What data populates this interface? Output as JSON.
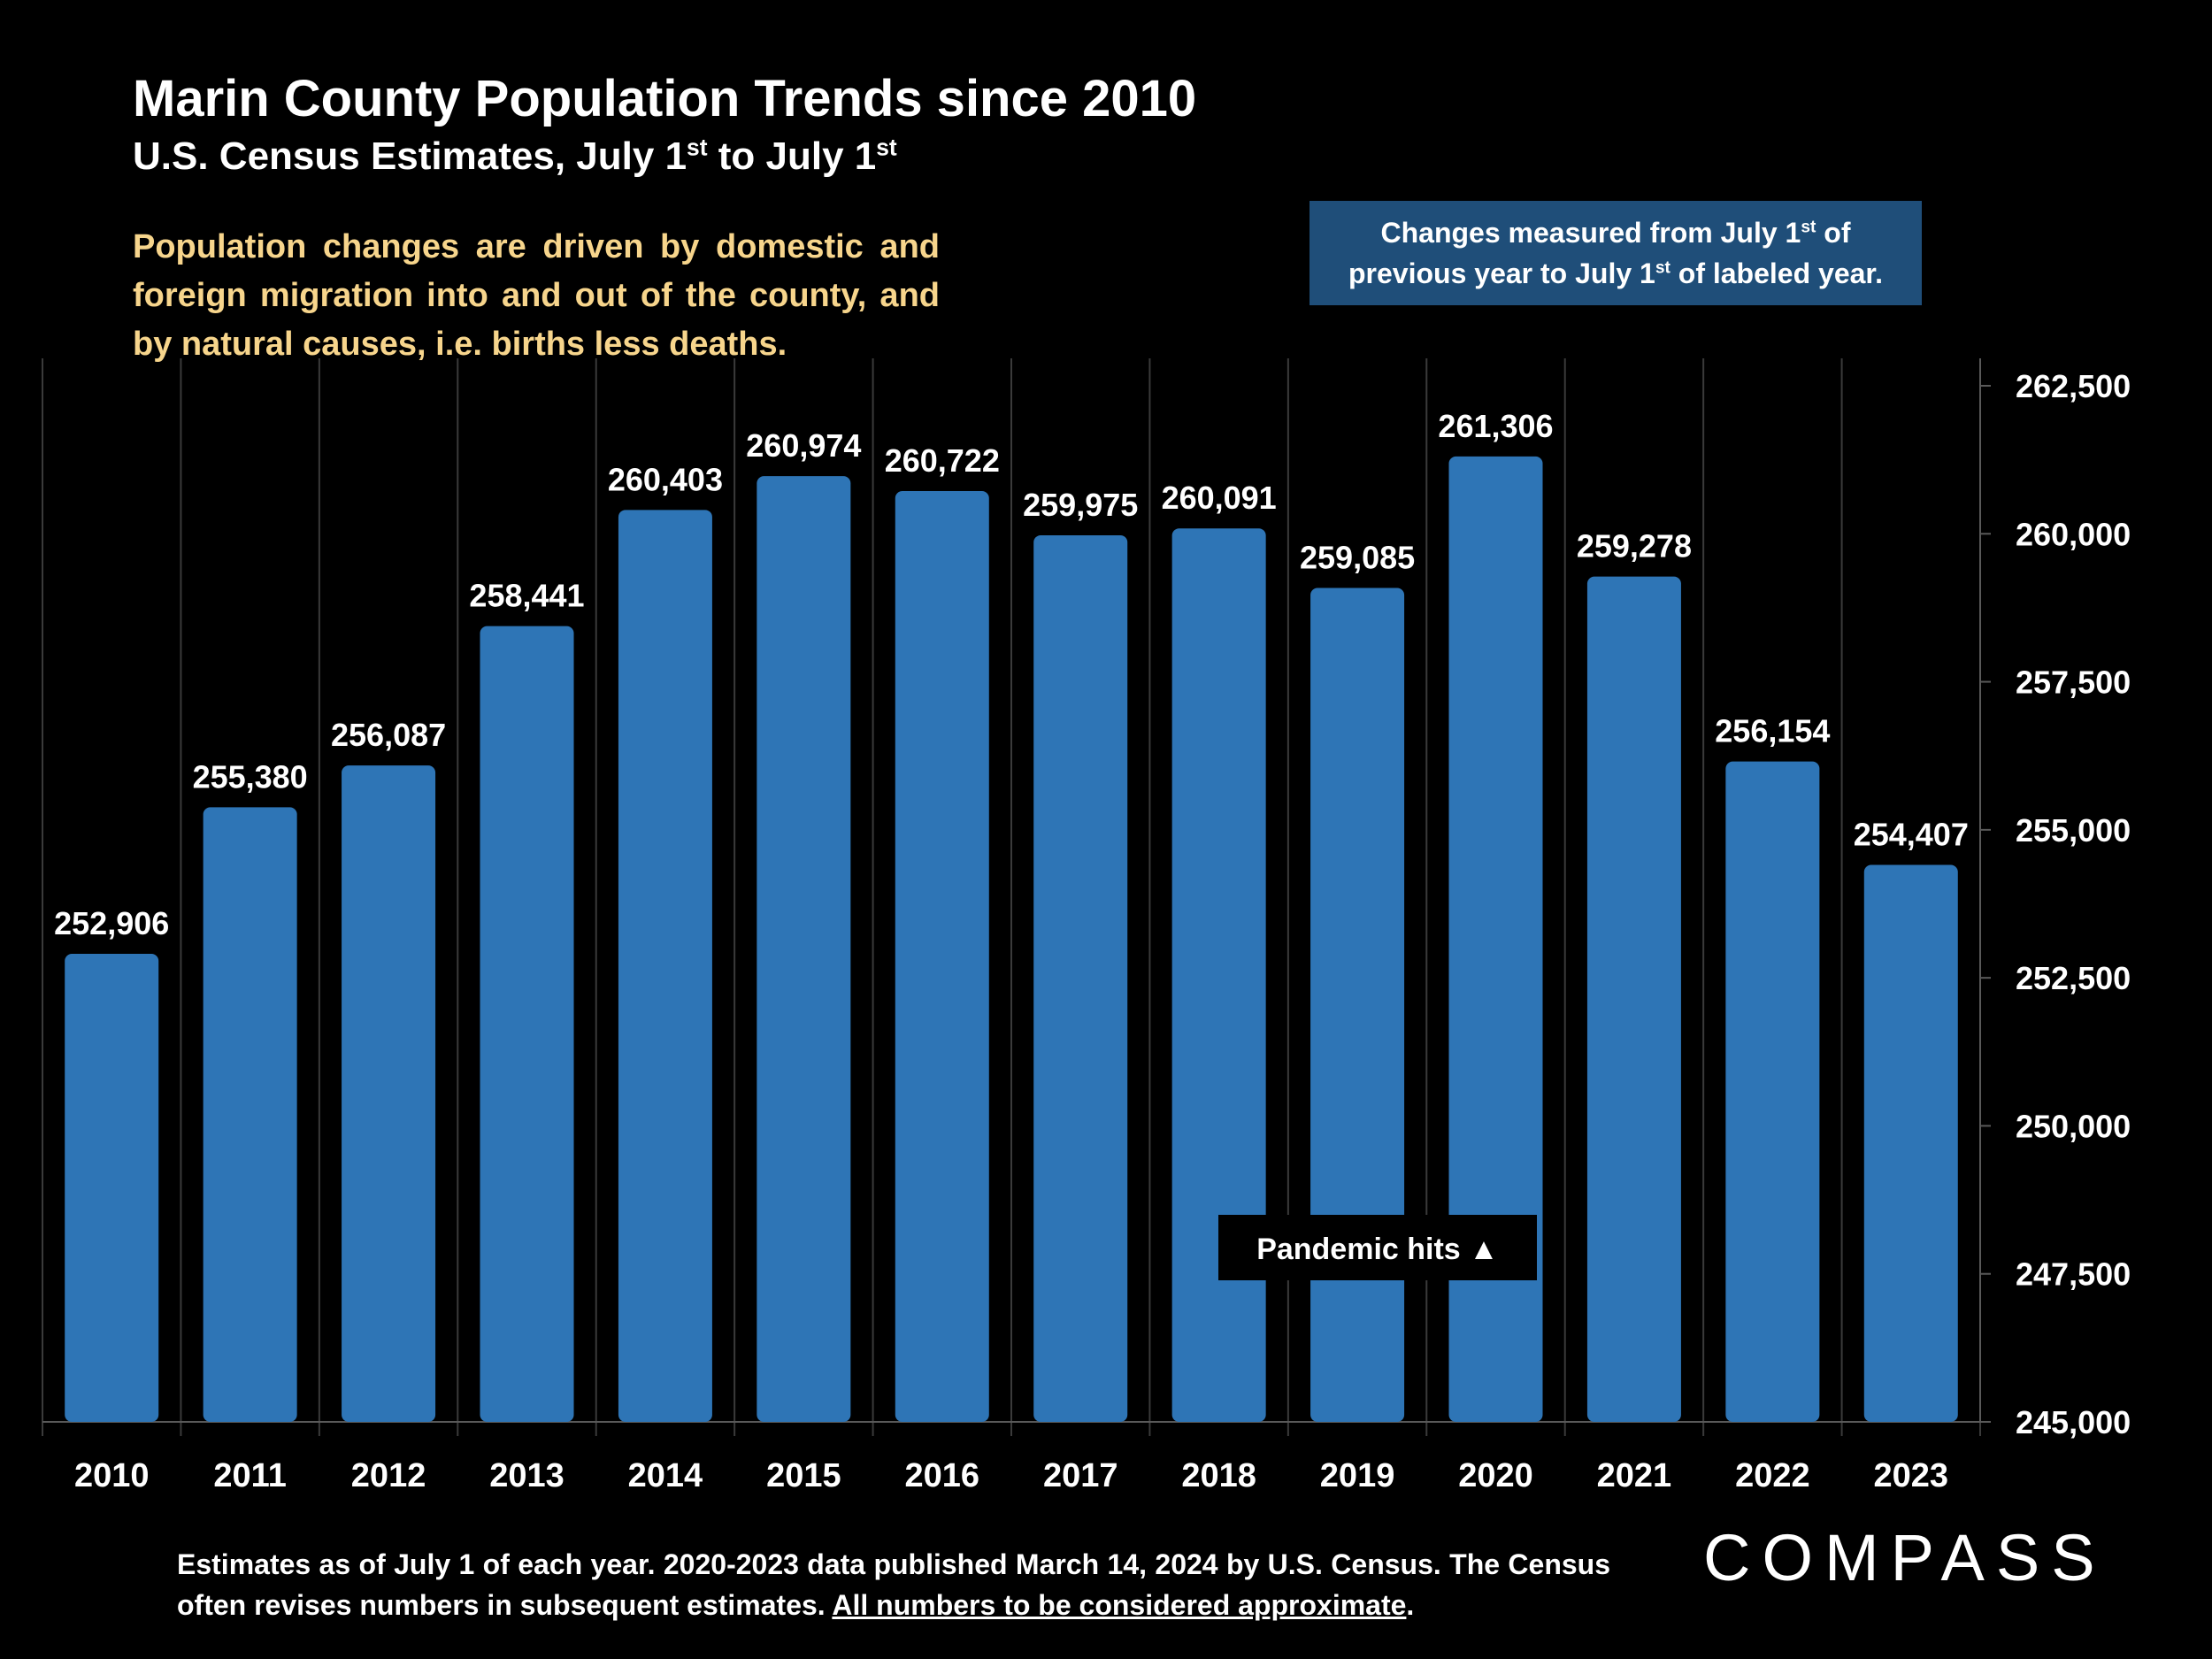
{
  "title": "Marin County Population Trends since 2010",
  "subtitle": {
    "prefix": "U.S. Census Estimates, July 1",
    "sup1": "st",
    "middle": " to July 1",
    "sup2": "st"
  },
  "description": "Population changes are driven by domestic and foreign migration into and out of the county, and by natural causes, i.e. births less deaths.",
  "note_box": {
    "line1_prefix": "Changes measured from July 1",
    "line1_sup": "st",
    "line1_suffix": " of",
    "line2_prefix": "previous year to July 1",
    "line2_sup": "st",
    "line2_suffix": " of labeled year."
  },
  "annotation": "Pandemic hits ▲",
  "footer": {
    "text": "Estimates as of July 1 of each year. 2020-2023 data published March 14, 2024 by U.S. Census. The Census often revises numbers in subsequent estimates. ",
    "underlined": "All numbers to be considered approximate",
    "end": "."
  },
  "logo": "COMPASS",
  "colors": {
    "background": "#000000",
    "bar": "#2e75b6",
    "note_box": "#1f4e79",
    "description": "#f7d58c",
    "text": "#ffffff"
  },
  "chart_data": {
    "type": "bar",
    "categories": [
      "2010",
      "2011",
      "2012",
      "2013",
      "2014",
      "2015",
      "2016",
      "2017",
      "2018",
      "2019",
      "2020",
      "2021",
      "2022",
      "2023"
    ],
    "values": [
      252906,
      255380,
      256087,
      258441,
      260403,
      260974,
      260722,
      259975,
      260091,
      259085,
      261306,
      259278,
      256154,
      254407
    ],
    "value_labels": [
      "252,906",
      "255,380",
      "256,087",
      "258,441",
      "260,403",
      "260,974",
      "260,722",
      "259,975",
      "260,091",
      "259,085",
      "261,306",
      "259,278",
      "256,154",
      "254,407"
    ],
    "ylim": [
      245000,
      262500
    ],
    "y_axis_position": "right",
    "y_ticks": [
      245000,
      247500,
      250000,
      252500,
      255000,
      257500,
      260000,
      262500
    ],
    "y_tick_labels": [
      "245,000",
      "247,500",
      "250,000",
      "252,500",
      "255,000",
      "257,500",
      "260,000",
      "262,500"
    ],
    "vertical_gridlines": true
  }
}
